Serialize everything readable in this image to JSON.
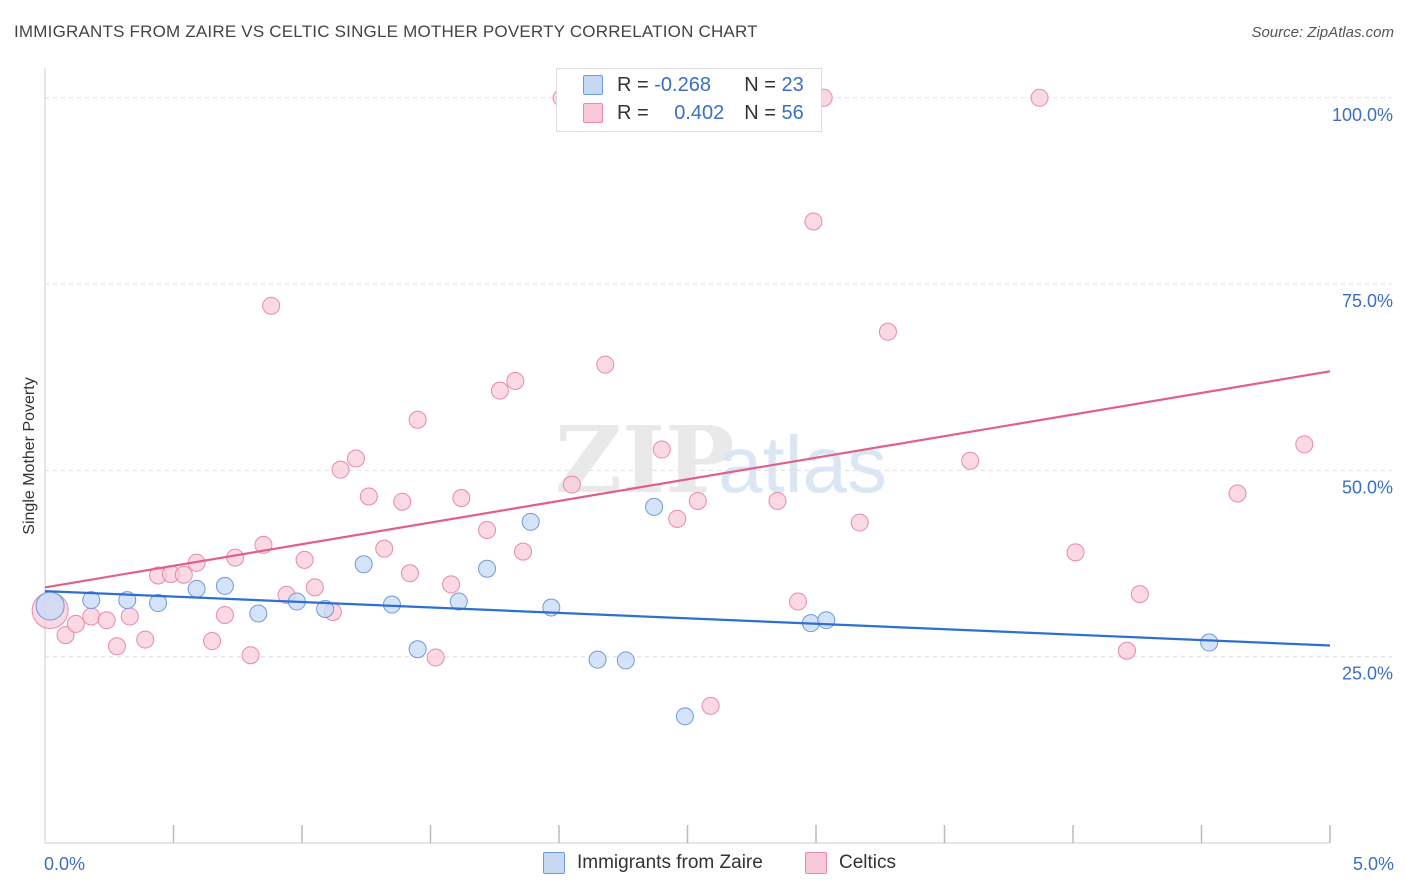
{
  "title": "IMMIGRANTS FROM ZAIRE VS CELTIC SINGLE MOTHER POVERTY CORRELATION CHART",
  "source": "Source: ZipAtlas.com",
  "watermark": {
    "zip": "ZIP",
    "atlas": "atlas"
  },
  "legend": {
    "r_label": "R =",
    "n_label": "N =",
    "rows": [
      {
        "name": "Immigrants from Zaire",
        "r": "-0.268",
        "n": "23"
      },
      {
        "name": "Celtics",
        "r": "0.402",
        "n": "56"
      }
    ]
  },
  "colors": {
    "blue_fill": "#c5d9f5",
    "blue_stroke": "#6f9ad8",
    "blue_line": "#2f6fce",
    "pink_fill": "#f9c9d8",
    "pink_stroke": "#e88aa8",
    "pink_line": "#e0608a",
    "axis_text": "#3a6fc4",
    "grid": "#dddddd"
  },
  "chart_data": {
    "type": "scatter",
    "title": "IMMIGRANTS FROM ZAIRE VS CELTIC SINGLE MOTHER POVERTY CORRELATION CHART",
    "xlabel": "",
    "ylabel": "Single Mother Poverty",
    "xlim": [
      0,
      5
    ],
    "ylim": [
      0,
      104
    ],
    "x_tick_labels": [
      "0.0%",
      "5.0%"
    ],
    "y_ticks": [
      25,
      50,
      75,
      100
    ],
    "y_tick_labels": [
      "25.0%",
      "50.0%",
      "75.0%",
      "100.0%"
    ],
    "series": [
      {
        "name": "Immigrants from Zaire",
        "trend": {
          "x0": 0,
          "y0": 33.8,
          "x1": 5,
          "y1": 26.5
        },
        "points": [
          [
            0.02,
            31.8
          ],
          [
            0.18,
            32.6
          ],
          [
            0.32,
            32.6
          ],
          [
            0.44,
            32.2
          ],
          [
            0.59,
            34.1
          ],
          [
            0.7,
            34.5
          ],
          [
            0.83,
            30.8
          ],
          [
            0.98,
            32.4
          ],
          [
            1.09,
            31.4
          ],
          [
            1.24,
            37.4
          ],
          [
            1.35,
            32.0
          ],
          [
            1.45,
            26.0
          ],
          [
            1.61,
            32.4
          ],
          [
            1.72,
            36.8
          ],
          [
            1.89,
            43.1
          ],
          [
            1.97,
            31.6
          ],
          [
            2.15,
            24.6
          ],
          [
            2.26,
            24.5
          ],
          [
            2.37,
            45.1
          ],
          [
            2.49,
            17.0
          ],
          [
            2.98,
            29.5
          ],
          [
            3.04,
            29.9
          ],
          [
            4.53,
            26.9
          ]
        ]
      },
      {
        "name": "Celtics",
        "trend": {
          "x0": 0,
          "y0": 34.3,
          "x1": 5,
          "y1": 63.3
        },
        "points": [
          [
            0.02,
            31.2
          ],
          [
            0.08,
            27.9
          ],
          [
            0.12,
            29.4
          ],
          [
            0.18,
            30.4
          ],
          [
            0.24,
            29.9
          ],
          [
            0.28,
            26.4
          ],
          [
            0.33,
            30.4
          ],
          [
            0.39,
            27.3
          ],
          [
            0.44,
            35.9
          ],
          [
            0.49,
            36.1
          ],
          [
            0.54,
            36.0
          ],
          [
            0.59,
            37.6
          ],
          [
            0.65,
            27.1
          ],
          [
            0.7,
            30.6
          ],
          [
            0.74,
            38.3
          ],
          [
            0.8,
            25.2
          ],
          [
            0.85,
            40.0
          ],
          [
            0.88,
            72.1
          ],
          [
            0.94,
            33.3
          ],
          [
            1.01,
            38.0
          ],
          [
            1.05,
            34.3
          ],
          [
            1.12,
            31.0
          ],
          [
            1.15,
            50.1
          ],
          [
            1.21,
            51.6
          ],
          [
            1.26,
            46.5
          ],
          [
            1.32,
            39.5
          ],
          [
            1.39,
            45.8
          ],
          [
            1.42,
            36.2
          ],
          [
            1.45,
            56.8
          ],
          [
            1.52,
            24.9
          ],
          [
            1.58,
            34.7
          ],
          [
            1.62,
            46.3
          ],
          [
            1.72,
            42.0
          ],
          [
            1.77,
            60.7
          ],
          [
            1.83,
            62.0
          ],
          [
            1.86,
            39.1
          ],
          [
            2.01,
            100.0
          ],
          [
            2.05,
            48.1
          ],
          [
            2.18,
            64.2
          ],
          [
            2.4,
            52.8
          ],
          [
            2.46,
            43.5
          ],
          [
            2.54,
            45.9
          ],
          [
            2.59,
            18.4
          ],
          [
            2.85,
            45.9
          ],
          [
            2.93,
            32.4
          ],
          [
            2.99,
            83.4
          ],
          [
            3.03,
            100.0
          ],
          [
            3.17,
            43.0
          ],
          [
            3.28,
            68.6
          ],
          [
            3.87,
            100.0
          ],
          [
            3.6,
            51.3
          ],
          [
            4.01,
            39.0
          ],
          [
            4.21,
            25.8
          ],
          [
            4.26,
            33.4
          ],
          [
            4.64,
            46.9
          ],
          [
            4.9,
            53.5
          ]
        ]
      }
    ]
  }
}
